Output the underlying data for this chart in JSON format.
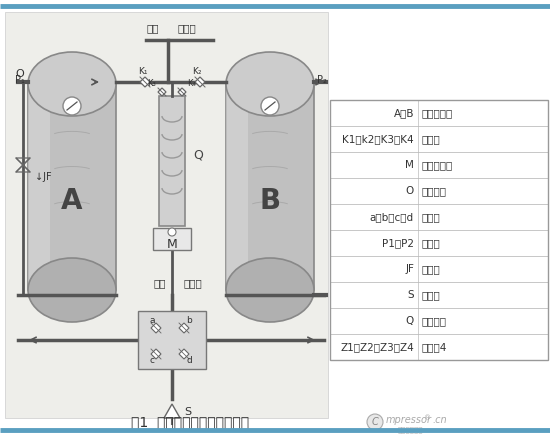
{
  "title": "图1  微热吸附式干燥机结构图",
  "table_rows": [
    [
      "A、B",
      "吸附干燥筒"
    ],
    [
      "K1、k2、K3、K4",
      "单向阀"
    ],
    [
      "M",
      "程序控制器"
    ],
    [
      "O",
      "电磁阀组"
    ],
    [
      "a、b、c、d",
      "气动阀"
    ],
    [
      "P1、P2",
      "压力表"
    ],
    [
      "JF",
      "调节器"
    ],
    [
      "S",
      "消音器"
    ],
    [
      "Q",
      "电加热器"
    ],
    [
      "Z1、Z2、Z3、Z4",
      "扩散器4"
    ]
  ],
  "bg_color": "#ffffff",
  "diag_bg": "#eeeeea",
  "tank_face": "#c2c2c2",
  "tank_edge": "#888888",
  "pipe_color": "#555555",
  "border_color": "#5a9fc0",
  "table_line": "#aaaaaa",
  "text_color": "#333333"
}
